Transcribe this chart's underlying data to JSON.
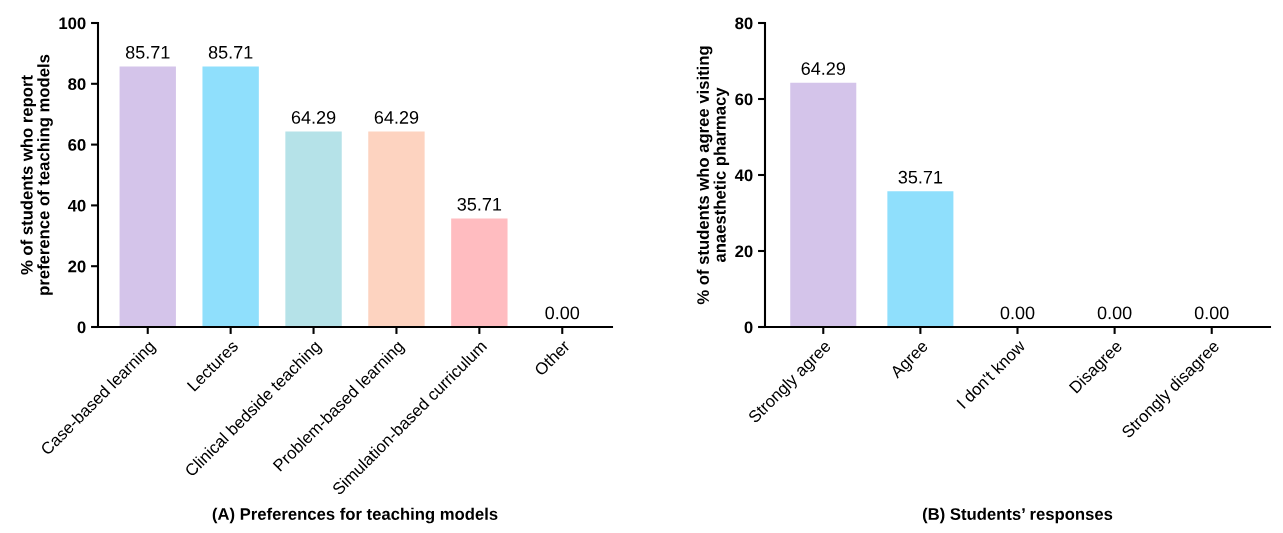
{
  "chart_data": [
    {
      "type": "bar",
      "title": "(A) Preferences for teaching models",
      "ylabel": "% of students who report\npreference of teaching models",
      "categories": [
        "Case-based learning",
        "Lectures",
        "Clinical bedside teaching",
        "Problem-based learning",
        "Simulation-based curriculum",
        "Other"
      ],
      "values": [
        85.71,
        85.71,
        64.29,
        64.29,
        35.71,
        0.0
      ],
      "value_labels": [
        "85.71",
        "85.71",
        "64.29",
        "64.29",
        "35.71",
        "0.00"
      ],
      "colors": [
        "#d4c4ea",
        "#8fdffc",
        "#b5e2e8",
        "#fdd3c0",
        "#ffbcc0",
        "#d9d9d9"
      ],
      "ylim": [
        0,
        100
      ],
      "yticks": [
        0,
        20,
        40,
        60,
        80,
        100
      ],
      "grid": false,
      "legend": false
    },
    {
      "type": "bar",
      "title": "(B) Students’ responses",
      "ylabel": "% of students who agree visiting\nanaesthetic pharmacy",
      "categories": [
        "Strongly agree",
        "Agree",
        "I don't know",
        "Disagree",
        "Strongly disagree"
      ],
      "values": [
        64.29,
        35.71,
        0.0,
        0.0,
        0.0
      ],
      "value_labels": [
        "64.29",
        "35.71",
        "0.00",
        "0.00",
        "0.00"
      ],
      "colors": [
        "#d4c4ea",
        "#8fdffc",
        "#b5e2e8",
        "#fdd3c0",
        "#ffbcc0"
      ],
      "ylim": [
        0,
        80
      ],
      "yticks": [
        0,
        20,
        40,
        60,
        80
      ],
      "grid": false,
      "legend": false
    }
  ]
}
